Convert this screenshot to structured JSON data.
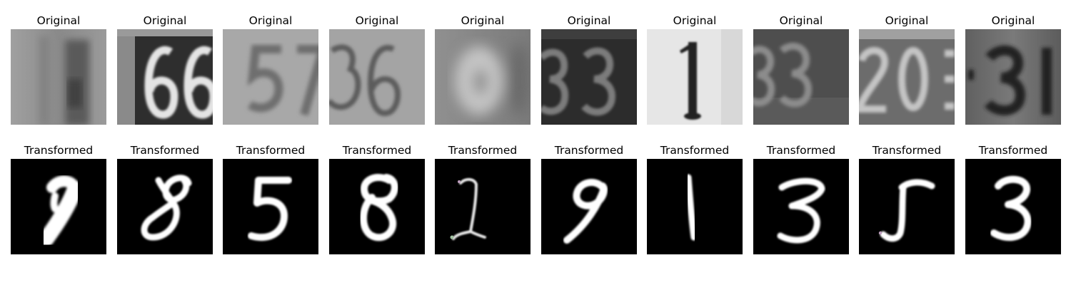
{
  "panels": [
    {
      "original": {
        "title": "Original",
        "depicts": "blurry-gray-digit",
        "palette": {
          "bg": "#8e8e8e",
          "fg": "#4a4a4a",
          "edge": "#6e6e6e"
        }
      },
      "transformed": {
        "title": "Transformed",
        "depicts": "handwritten-1",
        "palette": {
          "bg": "#000000",
          "fg": "#ffffff"
        }
      }
    },
    {
      "original": {
        "title": "Original",
        "depicts": "house-number-66",
        "palette": {
          "bg": "#3a3a3a",
          "fg": "#e6e6e6",
          "edge": "#9a9a9a"
        }
      },
      "transformed": {
        "title": "Transformed",
        "depicts": "handwritten-8",
        "palette": {
          "bg": "#000000",
          "fg": "#ffffff"
        }
      }
    },
    {
      "original": {
        "title": "Original",
        "depicts": "house-number-57",
        "palette": {
          "bg": "#a6a6a6",
          "fg": "#6e6e6e",
          "edge": "#9a9a9a"
        }
      },
      "transformed": {
        "title": "Transformed",
        "depicts": "handwritten-5",
        "palette": {
          "bg": "#000000",
          "fg": "#ffffff"
        }
      }
    },
    {
      "original": {
        "title": "Original",
        "depicts": "house-number-36",
        "palette": {
          "bg": "#a2a2a2",
          "fg": "#5e5e5e",
          "edge": "#8a8a8a"
        }
      },
      "transformed": {
        "title": "Transformed",
        "depicts": "handwritten-8",
        "palette": {
          "bg": "#000000",
          "fg": "#ffffff"
        }
      }
    },
    {
      "original": {
        "title": "Original",
        "depicts": "blurry-gray-digit",
        "palette": {
          "bg": "#8a8a8a",
          "fg": "#c2c2c2",
          "edge": "#7a7a7a"
        }
      },
      "transformed": {
        "title": "Transformed",
        "depicts": "handwritten-2",
        "palette": {
          "bg": "#000000",
          "fg": "#f0f0f0"
        }
      }
    },
    {
      "original": {
        "title": "Original",
        "depicts": "house-number-33",
        "palette": {
          "bg": "#2e2e2e",
          "fg": "#7a7a7a",
          "edge": "#3e3e3e"
        }
      },
      "transformed": {
        "title": "Transformed",
        "depicts": "handwritten-9",
        "palette": {
          "bg": "#000000",
          "fg": "#ffffff"
        }
      }
    },
    {
      "original": {
        "title": "Original",
        "depicts": "house-number-1",
        "palette": {
          "bg": "#e8e8e8",
          "fg": "#1e1e1e",
          "edge": "#d0d0d0"
        }
      },
      "transformed": {
        "title": "Transformed",
        "depicts": "handwritten-1",
        "palette": {
          "bg": "#000000",
          "fg": "#ffffff"
        }
      }
    },
    {
      "original": {
        "title": "Original",
        "depicts": "house-number-33",
        "palette": {
          "bg": "#4e4e4e",
          "fg": "#8e8e8e",
          "edge": "#5e5e5e"
        }
      },
      "transformed": {
        "title": "Transformed",
        "depicts": "handwritten-3",
        "palette": {
          "bg": "#000000",
          "fg": "#ffffff"
        }
      }
    },
    {
      "original": {
        "title": "Original",
        "depicts": "house-number-20",
        "palette": {
          "bg": "#6a6a6a",
          "fg": "#c2c2c2",
          "edge": "#8a8a8a"
        }
      },
      "transformed": {
        "title": "Transformed",
        "depicts": "handwritten-5",
        "palette": {
          "bg": "#000000",
          "fg": "#ffffff"
        }
      }
    },
    {
      "original": {
        "title": "Original",
        "depicts": "house-number-31",
        "palette": {
          "bg": "#6a6a6a",
          "fg": "#222222",
          "edge": "#555555"
        }
      },
      "transformed": {
        "title": "Transformed",
        "depicts": "handwritten-3",
        "palette": {
          "bg": "#000000",
          "fg": "#ffffff"
        }
      }
    }
  ]
}
